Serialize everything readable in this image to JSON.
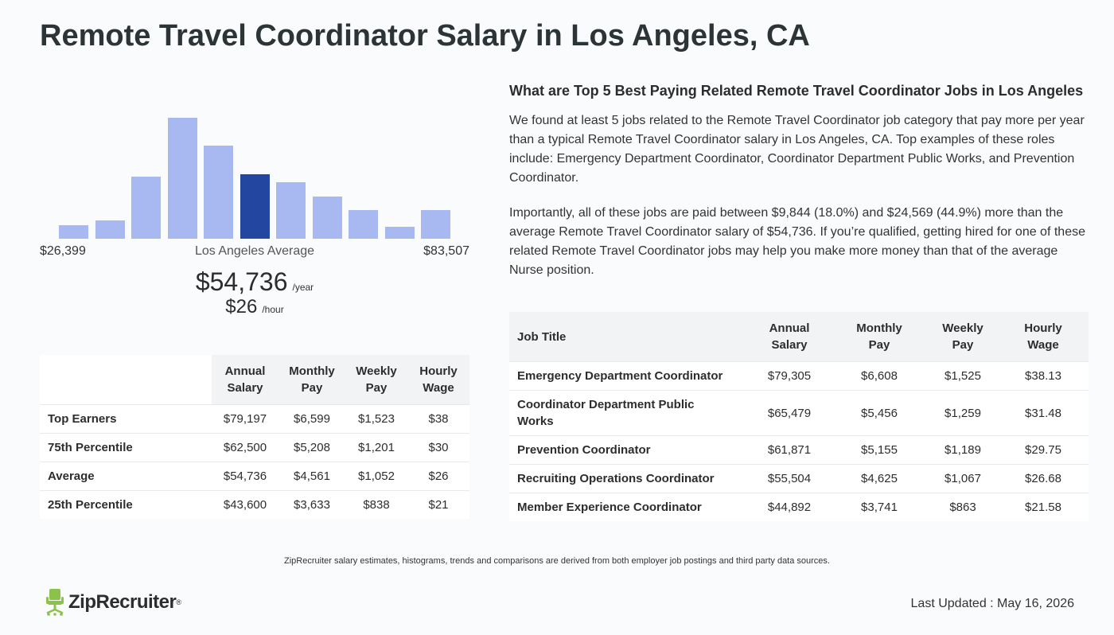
{
  "page": {
    "title": "Remote Travel Coordinator Salary in Los Angeles, CA"
  },
  "histogram": {
    "min_label": "$26,399",
    "max_label": "$83,507",
    "average_label": "Los Angeles Average",
    "annual_value": "$54,736",
    "annual_unit": "/year",
    "hourly_value": "$26",
    "hourly_unit": "/hour",
    "bar_color": "#a8b8f0",
    "highlight_color": "#2346a0",
    "highlight_index": 5,
    "relative_heights": [
      0.11,
      0.15,
      0.51,
      1.0,
      0.77,
      0.53,
      0.47,
      0.35,
      0.24,
      0.1,
      0.24
    ]
  },
  "percentile_table": {
    "headers": [
      "",
      "Annual Salary",
      "Monthly Pay",
      "Weekly Pay",
      "Hourly Wage"
    ],
    "rows": [
      {
        "label": "Top Earners",
        "annual": "$79,197",
        "monthly": "$6,599",
        "weekly": "$1,523",
        "hourly": "$38"
      },
      {
        "label": "75th Percentile",
        "annual": "$62,500",
        "monthly": "$5,208",
        "weekly": "$1,201",
        "hourly": "$30"
      },
      {
        "label": "Average",
        "annual": "$54,736",
        "monthly": "$4,561",
        "weekly": "$1,052",
        "hourly": "$26"
      },
      {
        "label": "25th Percentile",
        "annual": "$43,600",
        "monthly": "$3,633",
        "weekly": "$838",
        "hourly": "$21"
      }
    ]
  },
  "related": {
    "heading": "What are Top 5 Best Paying Related Remote Travel Coordinator Jobs in Los Angeles",
    "paragraph1": "We found at least 5 jobs related to the Remote Travel Coordinator job category that pay more per year than a typical Remote Travel Coordinator salary in Los Angeles, CA. Top examples of these roles include: Emergency Department Coordinator, Coordinator Department Public Works, and Prevention Coordinator.",
    "paragraph2": "Importantly, all of these jobs are paid between $9,844 (18.0%) and $24,569 (44.9%) more than the average Remote Travel Coordinator salary of $54,736. If you’re qualified, getting hired for one of these related Remote Travel Coordinator jobs may help you make more money than that of the average Nurse position."
  },
  "jobs_table": {
    "headers": [
      "Job Title",
      "Annual Salary",
      "Monthly Pay",
      "Weekly Pay",
      "Hourly Wage"
    ],
    "rows": [
      {
        "title": "Emergency Department Coordinator",
        "annual": "$79,305",
        "monthly": "$6,608",
        "weekly": "$1,525",
        "hourly": "$38.13"
      },
      {
        "title": "Coordinator Department Public Works",
        "annual": "$65,479",
        "monthly": "$5,456",
        "weekly": "$1,259",
        "hourly": "$31.48"
      },
      {
        "title": "Prevention Coordinator",
        "annual": "$61,871",
        "monthly": "$5,155",
        "weekly": "$1,189",
        "hourly": "$29.75"
      },
      {
        "title": "Recruiting Operations Coordinator",
        "annual": "$55,504",
        "monthly": "$4,625",
        "weekly": "$1,067",
        "hourly": "$26.68"
      },
      {
        "title": "Member Experience Coordinator",
        "annual": "$44,892",
        "monthly": "$3,741",
        "weekly": "$863",
        "hourly": "$21.58"
      }
    ]
  },
  "footer": {
    "note": "ZipRecruiter salary estimates, histograms, trends and comparisons are derived from both employer job postings and third party data sources.",
    "logo_text": "ZipRecruiter",
    "logo_color": "#8bc34a",
    "last_updated": "Last Updated : May 16, 2026"
  }
}
